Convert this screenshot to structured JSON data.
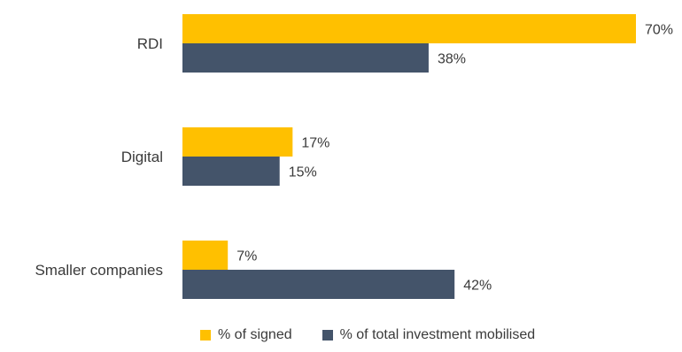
{
  "chart_data": {
    "type": "bar",
    "orientation": "horizontal",
    "categories": [
      "RDI",
      "Digital",
      "Smaller companies"
    ],
    "series": [
      {
        "name": "% of signed",
        "values": [
          70,
          17,
          7
        ],
        "labels": [
          "70%",
          "17%",
          "7%"
        ],
        "color": "#FFC000"
      },
      {
        "name": "% of total investment mobilised",
        "values": [
          38,
          15,
          42
        ],
        "labels": [
          "38%",
          "15%",
          "42%"
        ],
        "color": "#44546A"
      }
    ],
    "xlim": [
      0,
      70
    ],
    "grid": false,
    "legend_position": "bottom"
  }
}
